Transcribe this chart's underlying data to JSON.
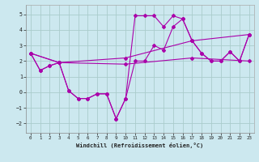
{
  "xlabel": "Windchill (Refroidissement éolien,°C)",
  "xlim": [
    -0.5,
    23.5
  ],
  "ylim": [
    -2.6,
    5.6
  ],
  "yticks": [
    -2,
    -1,
    0,
    1,
    2,
    3,
    4,
    5
  ],
  "xticks": [
    0,
    1,
    2,
    3,
    4,
    5,
    6,
    7,
    8,
    9,
    10,
    11,
    12,
    13,
    14,
    15,
    16,
    17,
    18,
    19,
    20,
    21,
    22,
    23
  ],
  "bg_color": "#cce8ef",
  "line_color": "#aa00aa",
  "grid_color": "#aacccc",
  "line1_x": [
    0,
    1,
    2,
    3,
    4,
    5,
    6,
    7,
    8,
    9,
    10,
    11,
    12,
    13,
    14,
    15,
    16,
    17,
    18,
    19,
    20,
    21,
    22,
    23
  ],
  "line1_y": [
    2.5,
    1.4,
    1.7,
    1.9,
    0.1,
    -0.4,
    -0.4,
    -0.1,
    -0.1,
    -1.7,
    -0.4,
    4.9,
    4.9,
    4.9,
    4.2,
    4.9,
    4.7,
    3.3,
    2.5,
    2.0,
    2.0,
    2.6,
    2.0,
    3.7
  ],
  "line2_x": [
    0,
    1,
    2,
    3,
    4,
    5,
    6,
    7,
    8,
    9,
    10,
    11,
    12,
    13,
    14,
    15,
    16,
    17,
    18,
    19,
    20,
    21,
    22,
    23
  ],
  "line2_y": [
    2.5,
    1.4,
    1.7,
    1.9,
    0.1,
    -0.4,
    -0.4,
    -0.1,
    -0.1,
    -1.7,
    -0.4,
    2.0,
    2.0,
    3.0,
    2.7,
    4.2,
    4.7,
    3.3,
    2.5,
    2.0,
    2.0,
    2.6,
    2.0,
    3.7
  ],
  "line3_x": [
    0,
    3,
    10,
    17,
    23
  ],
  "line3_y": [
    2.5,
    1.9,
    2.2,
    3.3,
    3.7
  ],
  "line4_x": [
    0,
    3,
    10,
    17,
    23
  ],
  "line4_y": [
    2.5,
    1.9,
    1.8,
    2.2,
    2.0
  ]
}
